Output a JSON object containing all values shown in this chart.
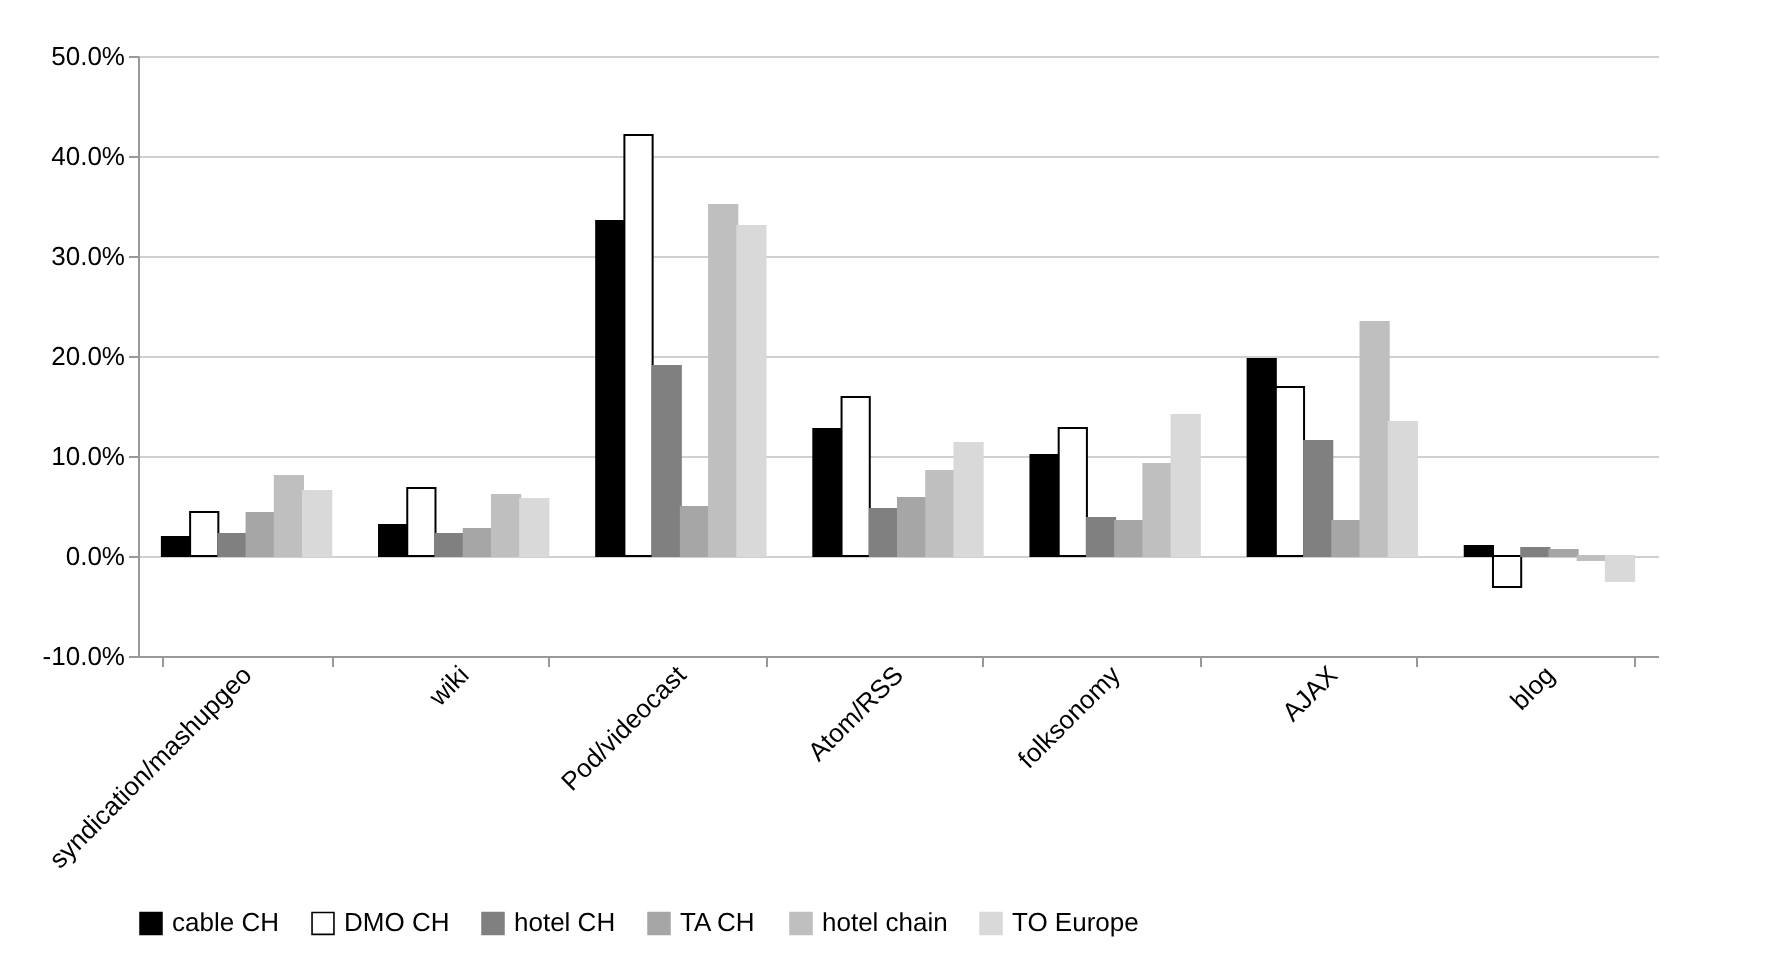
{
  "chart_data": {
    "type": "bar",
    "categories": [
      "syndication/mashupgeo",
      "wiki",
      "Pod/videocast",
      "Atom/RSS",
      "folksonomy",
      "AJAX",
      "blog"
    ],
    "series": [
      {
        "name": "cable CH",
        "color": "#000000",
        "values": [
          1.9,
          3.1,
          33.5,
          12.7,
          10.1,
          19.7,
          1.0
        ]
      },
      {
        "name": "DMO CH",
        "color": "#ffffff",
        "values": [
          4.4,
          6.8,
          42.1,
          15.9,
          12.8,
          16.9,
          -3.1
        ]
      },
      {
        "name": "hotel CH",
        "color": "#808080",
        "values": [
          2.2,
          2.2,
          19.0,
          4.7,
          3.8,
          11.5,
          0.8
        ]
      },
      {
        "name": "TA CH",
        "color": "#a6a6a6",
        "values": [
          4.3,
          2.7,
          4.9,
          5.8,
          3.5,
          3.5,
          0.6
        ]
      },
      {
        "name": "hotel chain",
        "color": "#bfbfbf",
        "values": [
          8.0,
          6.1,
          35.1,
          8.5,
          9.2,
          23.4,
          -0.4
        ]
      },
      {
        "name": "TO Europe",
        "color": "#d9d9d9",
        "values": [
          6.5,
          5.7,
          33.0,
          11.3,
          14.1,
          13.4,
          -2.5
        ]
      }
    ],
    "ylim": [
      -10,
      50
    ],
    "yticks": [
      {
        "value": -10,
        "label": "-10.0%"
      },
      {
        "value": 0,
        "label": "0.0%"
      },
      {
        "value": 10,
        "label": "10.0%"
      },
      {
        "value": 20,
        "label": "20.0%"
      },
      {
        "value": 30,
        "label": "30.0%"
      },
      {
        "value": 40,
        "label": "40.0%"
      },
      {
        "value": 50,
        "label": "50.0%"
      }
    ],
    "grid": "y",
    "legend": "bottom"
  }
}
